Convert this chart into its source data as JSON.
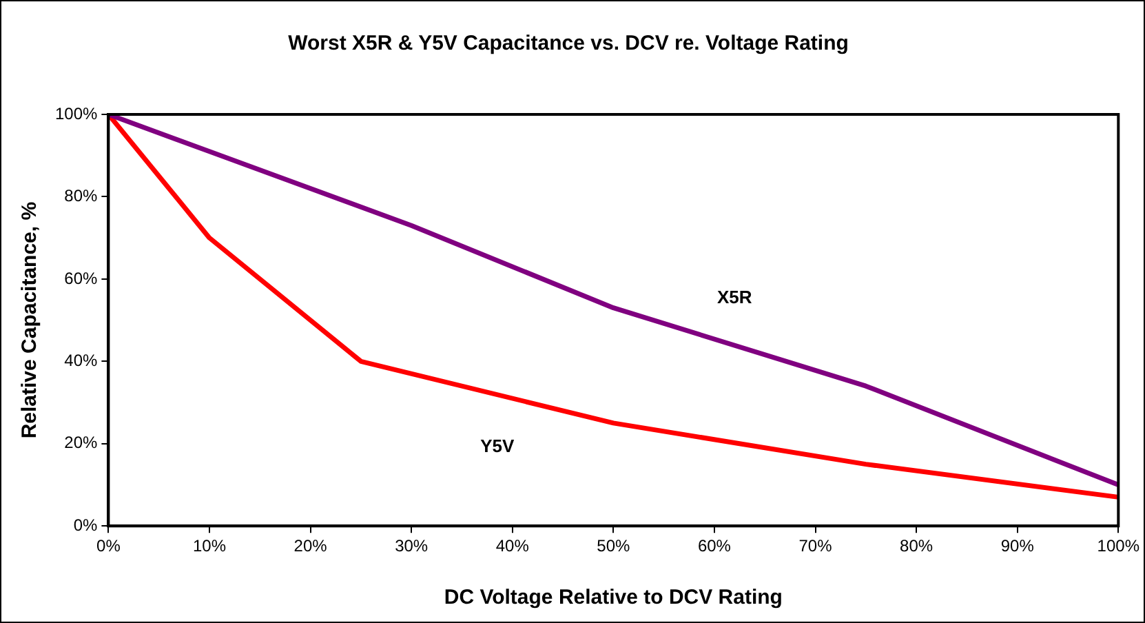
{
  "chart_data": {
    "type": "line",
    "title": "Worst X5R & Y5V Capacitance vs. DCV re. Voltage Rating",
    "xlabel": "DC Voltage Relative to DCV Rating",
    "ylabel": "Relative Capacitance, %",
    "series": [
      {
        "name": "X5R",
        "color": "#800080",
        "x": [
          0,
          10,
          30,
          50,
          75,
          100
        ],
        "values": [
          100,
          91,
          73,
          53,
          34,
          10
        ]
      },
      {
        "name": "Y5V",
        "color": "#ff0000",
        "x": [
          0,
          10,
          25,
          50,
          75,
          100
        ],
        "values": [
          100,
          70,
          40,
          25,
          15,
          7
        ]
      }
    ],
    "xlim": [
      0,
      100
    ],
    "ylim": [
      0,
      100
    ],
    "xticks": [
      {
        "value": 0,
        "label": "0%"
      },
      {
        "value": 10,
        "label": "10%"
      },
      {
        "value": 20,
        "label": "20%"
      },
      {
        "value": 30,
        "label": "30%"
      },
      {
        "value": 40,
        "label": "40%"
      },
      {
        "value": 50,
        "label": "50%"
      },
      {
        "value": 60,
        "label": "60%"
      },
      {
        "value": 70,
        "label": "70%"
      },
      {
        "value": 80,
        "label": "80%"
      },
      {
        "value": 90,
        "label": "90%"
      },
      {
        "value": 100,
        "label": "100%"
      }
    ],
    "yticks": [
      {
        "value": 0,
        "label": "0%"
      },
      {
        "value": 20,
        "label": "20%"
      },
      {
        "value": 40,
        "label": "40%"
      },
      {
        "value": 60,
        "label": "60%"
      },
      {
        "value": 80,
        "label": "80%"
      },
      {
        "value": 100,
        "label": "100%"
      }
    ],
    "grid": false,
    "legend": false,
    "marker": "none",
    "line_style": "solid"
  }
}
